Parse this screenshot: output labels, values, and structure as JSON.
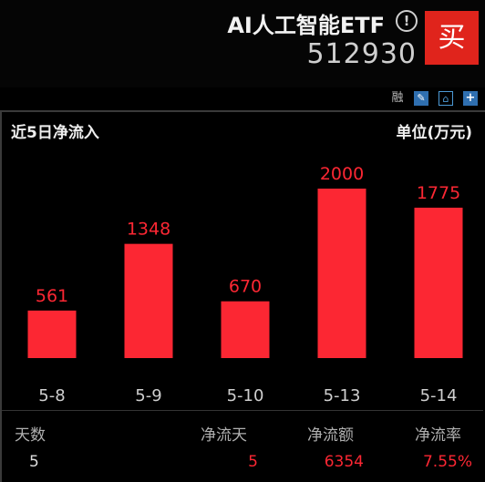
{
  "header": {
    "fund_name": "AI人工智能ETF",
    "info_icon_glyph": "!",
    "fund_code": "512930",
    "buy_label": "买"
  },
  "toolbar": {
    "rong_label": "融",
    "icons": [
      "edit-icon",
      "alert-bell-icon",
      "add-icon"
    ]
  },
  "panel": {
    "title": "近5日净流入",
    "unit": "单位(万元)"
  },
  "chart_data": {
    "type": "bar",
    "title": "近5日净流入",
    "ylabel": "单位(万元)",
    "categories": [
      "5-8",
      "5-9",
      "5-10",
      "5-13",
      "5-14"
    ],
    "values": [
      561,
      1348,
      670,
      2000,
      1775
    ],
    "value_labels": [
      "561",
      "1348",
      "670",
      "2000",
      "1775"
    ],
    "ylim": [
      0,
      2000
    ],
    "bar_color": "#fc2733",
    "label_color": "#fc2733",
    "tick_color": "#cfcfcf",
    "grid": false
  },
  "stats": {
    "headers": [
      "天数",
      "净流天",
      "净流额",
      "净流率"
    ],
    "values": [
      "5",
      "5",
      "6354",
      "7.55%"
    ],
    "days_color": "#dddddd",
    "highlight_color": "#fc2733"
  },
  "colors": {
    "background": "#000000",
    "buy_button": "#e0241c",
    "accent_blue": "#2f6fb0"
  }
}
